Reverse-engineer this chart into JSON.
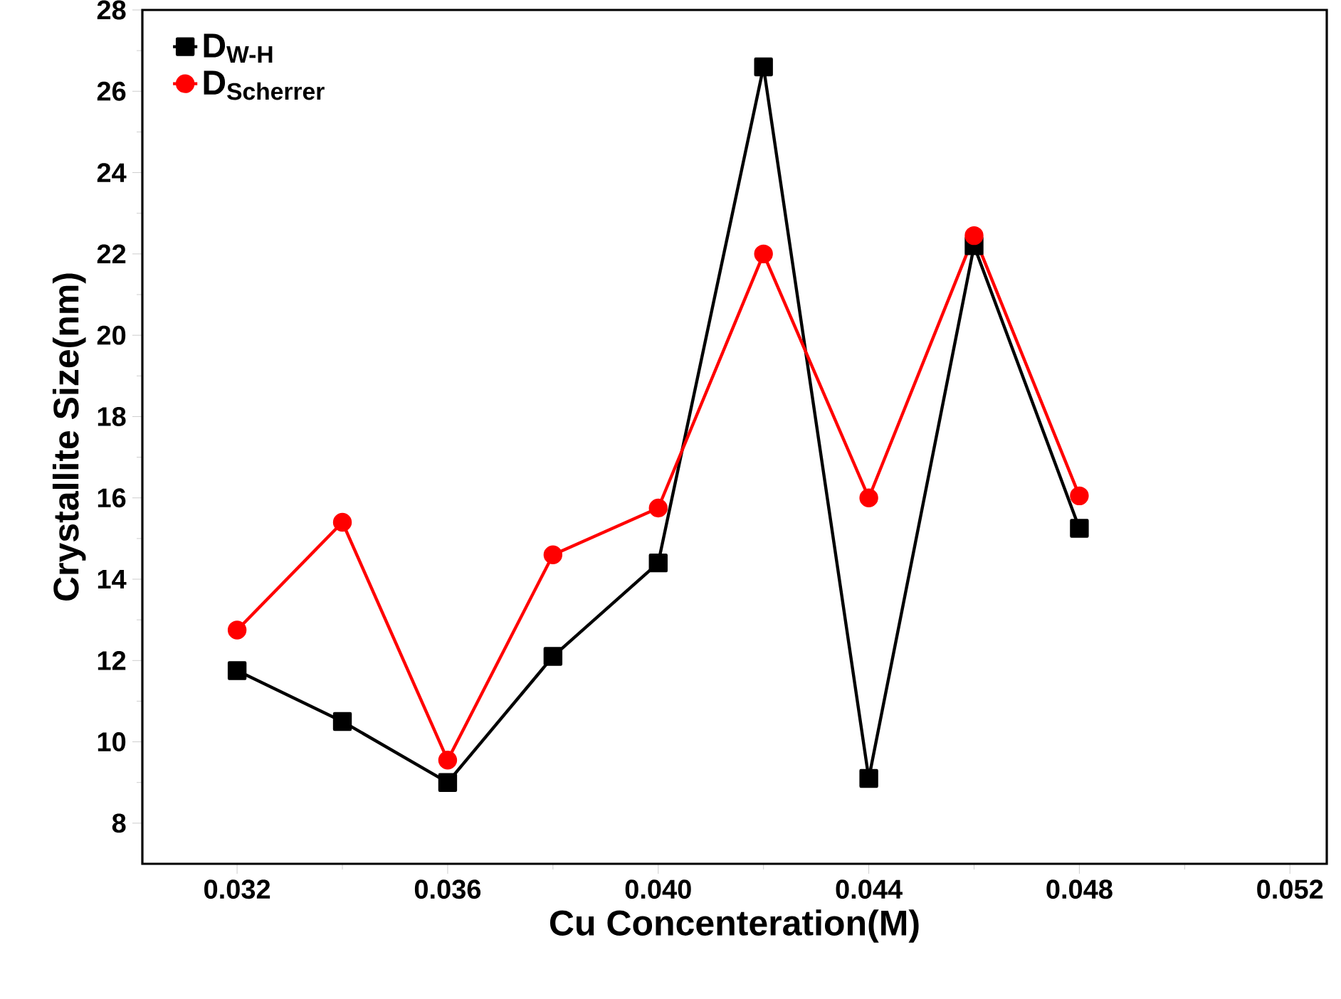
{
  "chart_data": {
    "type": "line",
    "xlabel": "Cu Concenteration(M)",
    "ylabel": "Crystallite Size(nm)",
    "x": [
      0.032,
      0.034,
      0.036,
      0.038,
      0.04,
      0.042,
      0.044,
      0.046,
      0.048
    ],
    "series": [
      {
        "name": "D$_{W-H}$",
        "color": "#000000",
        "marker": "square",
        "values": [
          11.75,
          10.5,
          9.0,
          12.1,
          14.4,
          26.6,
          9.1,
          22.2,
          15.25
        ]
      },
      {
        "name": "D$_{Scherrer}$",
        "color": "#ff0000",
        "marker": "circle",
        "values": [
          12.75,
          15.4,
          9.55,
          14.6,
          15.75,
          22.0,
          16.0,
          22.45,
          16.05
        ]
      }
    ],
    "xlim": [
      0.0302,
      0.0527
    ],
    "ylim": [
      7,
      28
    ],
    "xticks": [
      0.032,
      0.036,
      {
        "value": 0.04,
        "label": "0.040"
      },
      0.044,
      0.048,
      0.052
    ],
    "yticks": [
      8,
      10,
      12,
      14,
      16,
      18,
      20,
      22,
      24,
      26,
      28
    ],
    "legend": "top left",
    "grid": false,
    "line_style": "solid"
  }
}
